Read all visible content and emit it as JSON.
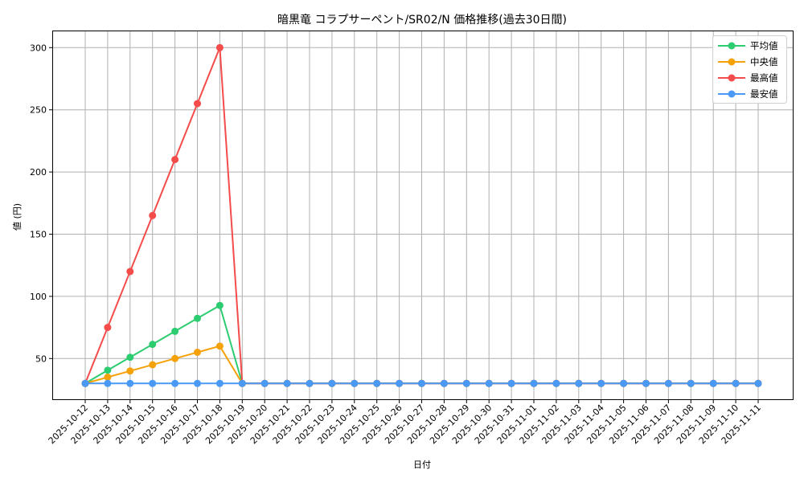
{
  "chart_data": {
    "type": "line",
    "title": "暗黒竜 コラプサーペント/SR02/N 価格推移(過去30日間)",
    "xlabel": "日付",
    "ylabel": "値 (円)",
    "ylim": [
      20,
      313
    ],
    "yticks": [
      50,
      100,
      150,
      200,
      250,
      300
    ],
    "grid": true,
    "legend_position": "upper right",
    "x": [
      "2025-10-12",
      "2025-10-13",
      "2025-10-14",
      "2025-10-15",
      "2025-10-16",
      "2025-10-17",
      "2025-10-18",
      "2025-10-19",
      "2025-10-20",
      "2025-10-21",
      "2025-10-22",
      "2025-10-23",
      "2025-10-24",
      "2025-10-25",
      "2025-10-26",
      "2025-10-27",
      "2025-10-28",
      "2025-10-29",
      "2025-10-30",
      "2025-10-31",
      "2025-11-01",
      "2025-11-02",
      "2025-11-03",
      "2025-11-04",
      "2025-11-05",
      "2025-11-06",
      "2025-11-07",
      "2025-11-08",
      "2025-11-09",
      "2025-11-10",
      "2025-11-11"
    ],
    "series": [
      {
        "name": "平均値",
        "color": "#2ecc71",
        "values": [
          30,
          40.6,
          51.0,
          61.4,
          71.9,
          82.3,
          92.7,
          30,
          30,
          30,
          30,
          30,
          30,
          30,
          30,
          30,
          30,
          30,
          30,
          30,
          30,
          30,
          30,
          30,
          30,
          30,
          30,
          30,
          30,
          30,
          30
        ]
      },
      {
        "name": "中央値",
        "color": "#f5a20a",
        "values": [
          30,
          35,
          40,
          45,
          50,
          55,
          60,
          30,
          30,
          30,
          30,
          30,
          30,
          30,
          30,
          30,
          30,
          30,
          30,
          30,
          30,
          30,
          30,
          30,
          30,
          30,
          30,
          30,
          30,
          30,
          30
        ]
      },
      {
        "name": "最高値",
        "color": "#f44b4b",
        "values": [
          30,
          75,
          120,
          165,
          210,
          255,
          300,
          30,
          30,
          30,
          30,
          30,
          30,
          30,
          30,
          30,
          30,
          30,
          30,
          30,
          30,
          30,
          30,
          30,
          30,
          30,
          30,
          30,
          30,
          30,
          30
        ]
      },
      {
        "name": "最安値",
        "color": "#4a9af5",
        "values": [
          30,
          30,
          30,
          30,
          30,
          30,
          30,
          30,
          30,
          30,
          30,
          30,
          30,
          30,
          30,
          30,
          30,
          30,
          30,
          30,
          30,
          30,
          30,
          30,
          30,
          30,
          30,
          30,
          30,
          30,
          30
        ]
      }
    ]
  }
}
